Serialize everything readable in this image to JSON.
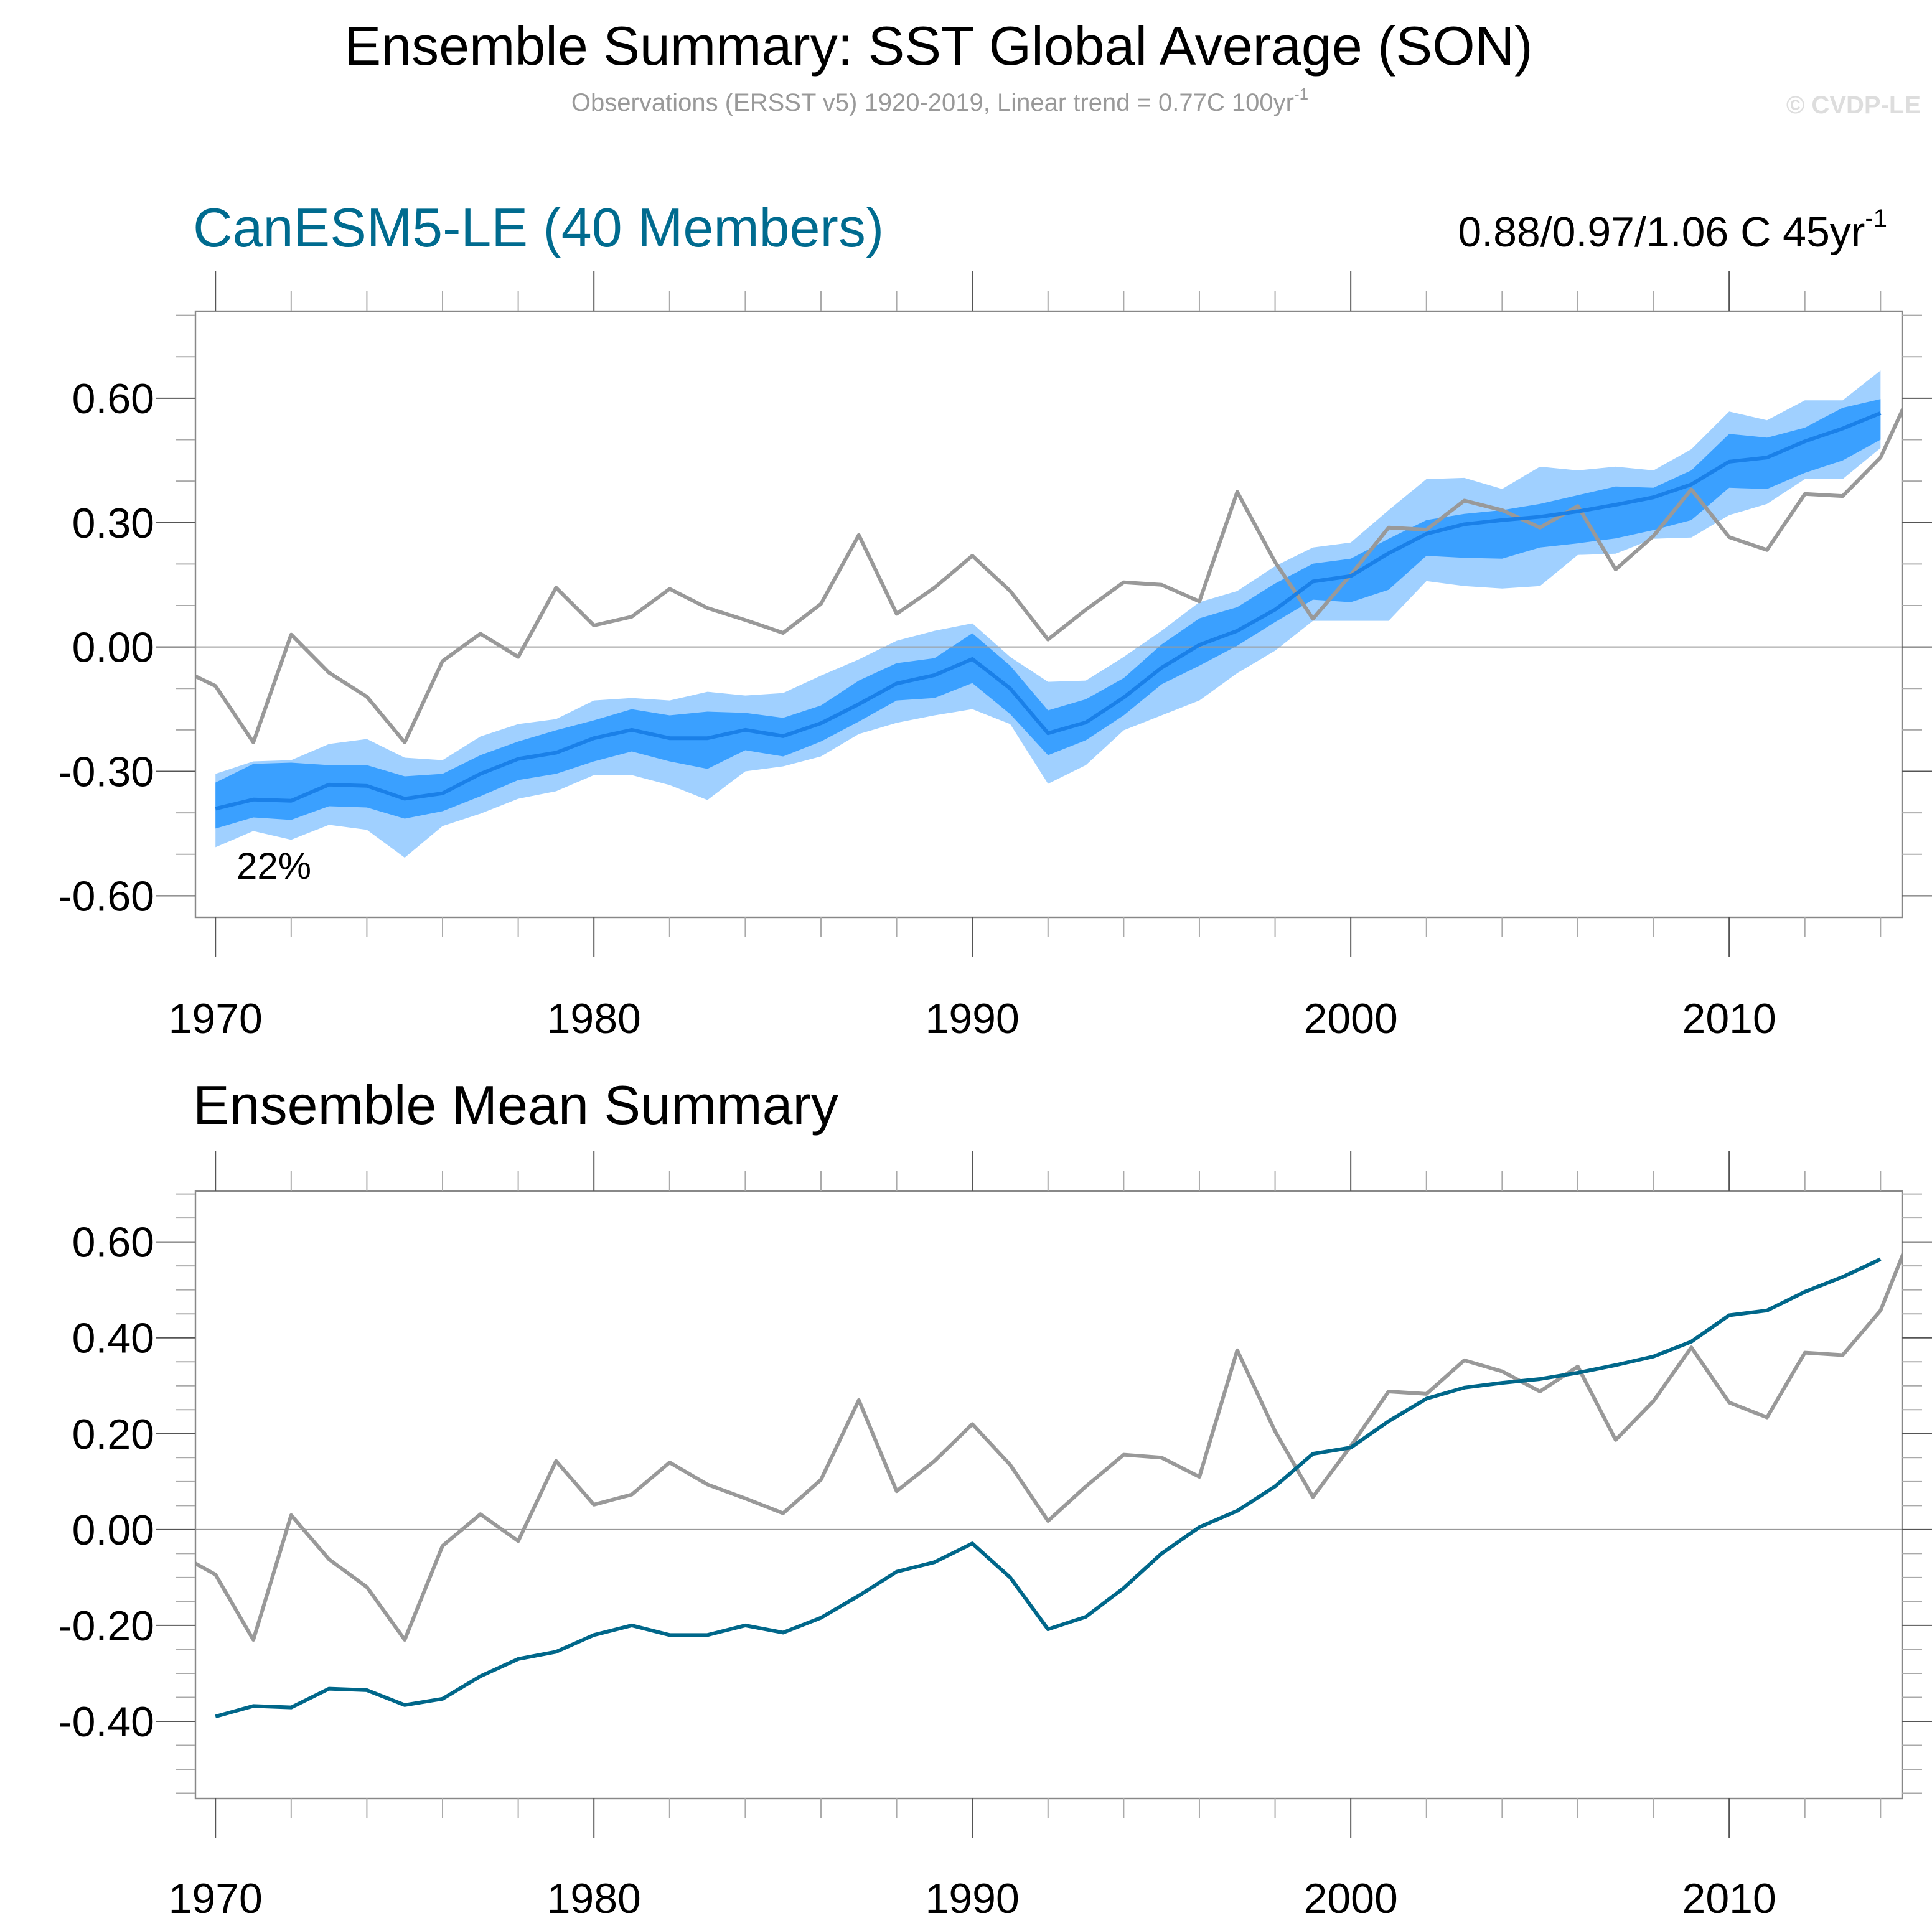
{
  "title": "Ensemble Summary: SST Global Average (SON)",
  "subtitle": "Observations (ERSST v5) 1920-2019, Linear trend = 0.77C 100yr",
  "subtitle_sup": "-1",
  "copyright": "© CVDP-LE",
  "colors": {
    "title_teal": "#006b8f",
    "obs": "#999999",
    "outer_band": "#a0d0ff",
    "inner_band": "#3aa0ff",
    "ens_mean_top": "#1a80e8",
    "ens_mean_bottom": "#00678a",
    "axis": "#888888"
  },
  "chart_data": [
    {
      "type": "area",
      "title": "CanESM5-LE (40 Members)",
      "trend_text": "0.88/0.97/1.06 C 45yr",
      "trend_sup": "-1",
      "annotation": "22%",
      "xlim": [
        1969.47,
        2014.57
      ],
      "ylim": [
        -0.652,
        0.81
      ],
      "yticks": [
        "0.60",
        "0.30",
        "0.00",
        "-0.30",
        "-0.60"
      ],
      "ytick_values": [
        0.6,
        0.3,
        0.0,
        -0.3,
        -0.6
      ],
      "yminor_step": 0.1,
      "xticks": [
        "1970",
        "1980",
        "1990",
        "2000",
        "2010"
      ],
      "xtick_values": [
        1970,
        1980,
        1990,
        2000,
        2010
      ],
      "xminor_step": 2,
      "zero_line": true,
      "years": [
        1970,
        1971,
        1972,
        1973,
        1974,
        1975,
        1976,
        1977,
        1978,
        1979,
        1980,
        1981,
        1982,
        1983,
        1984,
        1985,
        1986,
        1987,
        1988,
        1989,
        1990,
        1991,
        1992,
        1993,
        1994,
        1995,
        1996,
        1997,
        1998,
        1999,
        2000,
        2001,
        2002,
        2003,
        2004,
        2005,
        2006,
        2007,
        2008,
        2009,
        2010,
        2011,
        2012,
        2013,
        2014
      ],
      "outer_upper": [
        -0.306,
        -0.276,
        -0.273,
        -0.234,
        -0.222,
        -0.267,
        -0.273,
        -0.216,
        -0.186,
        -0.174,
        -0.129,
        -0.123,
        -0.129,
        -0.108,
        -0.117,
        -0.111,
        -0.069,
        -0.03,
        0.015,
        0.039,
        0.057,
        -0.024,
        -0.084,
        -0.081,
        -0.024,
        0.039,
        0.108,
        0.135,
        0.195,
        0.24,
        0.252,
        0.33,
        0.405,
        0.408,
        0.381,
        0.435,
        0.426,
        0.435,
        0.426,
        0.477,
        0.568,
        0.547,
        0.595,
        0.595,
        0.667
      ],
      "inner_upper": [
        -0.327,
        -0.282,
        -0.279,
        -0.285,
        -0.285,
        -0.312,
        -0.306,
        -0.261,
        -0.228,
        -0.201,
        -0.177,
        -0.15,
        -0.165,
        -0.156,
        -0.159,
        -0.171,
        -0.141,
        -0.081,
        -0.039,
        -0.027,
        0.033,
        -0.045,
        -0.153,
        -0.126,
        -0.075,
        0.006,
        0.069,
        0.096,
        0.153,
        0.201,
        0.213,
        0.261,
        0.306,
        0.321,
        0.33,
        0.345,
        0.366,
        0.387,
        0.384,
        0.426,
        0.514,
        0.505,
        0.529,
        0.577,
        0.598
      ],
      "inner_lower": [
        -0.438,
        -0.411,
        -0.417,
        -0.384,
        -0.387,
        -0.414,
        -0.396,
        -0.36,
        -0.321,
        -0.306,
        -0.276,
        -0.252,
        -0.276,
        -0.294,
        -0.249,
        -0.264,
        -0.228,
        -0.18,
        -0.129,
        -0.123,
        -0.087,
        -0.162,
        -0.261,
        -0.225,
        -0.165,
        -0.09,
        -0.045,
        0.003,
        0.06,
        0.114,
        0.108,
        0.138,
        0.22,
        0.215,
        0.213,
        0.24,
        0.25,
        0.262,
        0.282,
        0.306,
        0.384,
        0.381,
        0.42,
        0.45,
        0.5
      ],
      "outer_lower": [
        -0.483,
        -0.444,
        -0.465,
        -0.429,
        -0.441,
        -0.508,
        -0.432,
        -0.402,
        -0.366,
        -0.348,
        -0.309,
        -0.309,
        -0.333,
        -0.369,
        -0.3,
        -0.288,
        -0.264,
        -0.21,
        -0.183,
        -0.165,
        -0.15,
        -0.186,
        -0.33,
        -0.285,
        -0.201,
        -0.165,
        -0.129,
        -0.063,
        -0.009,
        0.063,
        0.063,
        0.063,
        0.159,
        0.147,
        0.141,
        0.147,
        0.222,
        0.225,
        0.261,
        0.264,
        0.318,
        0.345,
        0.405,
        0.405,
        0.48
      ],
      "ensemble_mean": [
        -0.39,
        -0.368,
        -0.371,
        -0.332,
        -0.335,
        -0.366,
        -0.353,
        -0.306,
        -0.27,
        -0.255,
        -0.22,
        -0.2,
        -0.22,
        -0.22,
        -0.2,
        -0.215,
        -0.184,
        -0.138,
        -0.088,
        -0.068,
        -0.029,
        -0.1,
        -0.208,
        -0.182,
        -0.122,
        -0.05,
        0.005,
        0.039,
        0.09,
        0.158,
        0.171,
        0.226,
        0.273,
        0.296,
        0.306,
        0.314,
        0.327,
        0.343,
        0.361,
        0.392,
        0.447,
        0.457,
        0.496,
        0.527,
        0.564
      ]
    },
    {
      "type": "line",
      "title": "Ensemble Mean Summary",
      "xlim": [
        1969.47,
        2014.57
      ],
      "ylim": [
        -0.561,
        0.706
      ],
      "yticks": [
        "0.60",
        "0.40",
        "0.20",
        "0.00",
        "-0.20",
        "-0.40"
      ],
      "ytick_values": [
        0.6,
        0.4,
        0.2,
        0.0,
        -0.2,
        -0.4
      ],
      "yminor_step": 0.05,
      "xticks": [
        "1970",
        "1980",
        "1990",
        "2000",
        "2010"
      ],
      "xtick_values": [
        1970,
        1980,
        1990,
        2000,
        2010
      ],
      "xminor_step": 2,
      "zero_line": true
    }
  ],
  "observations": {
    "years": [
      1969,
      1970,
      1971,
      1972,
      1973,
      1974,
      1975,
      1976,
      1977,
      1978,
      1979,
      1980,
      1981,
      1982,
      1983,
      1984,
      1985,
      1986,
      1987,
      1988,
      1989,
      1990,
      1991,
      1992,
      1993,
      1994,
      1995,
      1996,
      1997,
      1998,
      1999,
      2000,
      2001,
      2002,
      2003,
      2004,
      2005,
      2006,
      2007,
      2008,
      2009,
      2010,
      2011,
      2012,
      2013,
      2014,
      2015
    ],
    "values": [
      -0.05,
      -0.094,
      -0.23,
      0.03,
      -0.062,
      -0.12,
      -0.23,
      -0.034,
      0.032,
      -0.024,
      0.143,
      0.052,
      0.073,
      0.14,
      0.094,
      0.065,
      0.034,
      0.104,
      0.27,
      0.08,
      0.143,
      0.22,
      0.135,
      0.018,
      0.09,
      0.156,
      0.15,
      0.11,
      0.374,
      0.205,
      0.068,
      0.174,
      0.288,
      0.283,
      0.353,
      0.33,
      0.288,
      0.34,
      0.187,
      0.268,
      0.38,
      0.265,
      0.234,
      0.369,
      0.364,
      0.457,
      0.655
    ]
  }
}
